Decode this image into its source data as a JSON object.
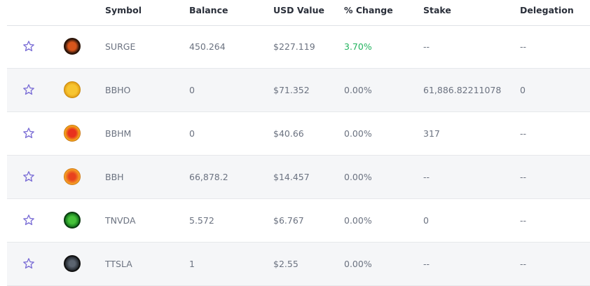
{
  "table": {
    "columns": [
      "Symbol",
      "Balance",
      "USD Value",
      "% Change",
      "Stake",
      "Delegation"
    ],
    "rows": [
      [
        "SURGE",
        "450.264",
        "$227.119",
        "3.70%",
        "--",
        "--"
      ],
      [
        "BBHO",
        "0",
        "$71.352",
        "0.00%",
        "61,886.82211078",
        "0"
      ],
      [
        "BBHM",
        "0",
        "$40.66",
        "0.00%",
        "317",
        "--"
      ],
      [
        "BBH",
        "66,878.2",
        "$14.457",
        "0.00%",
        "--",
        "--"
      ],
      [
        "TNVDA",
        "5.572",
        "$6.767",
        "0.00%",
        "0",
        "--"
      ],
      [
        "TTSLA",
        "1",
        "$2.55",
        "0.00%",
        "--",
        "--"
      ]
    ]
  }
}
